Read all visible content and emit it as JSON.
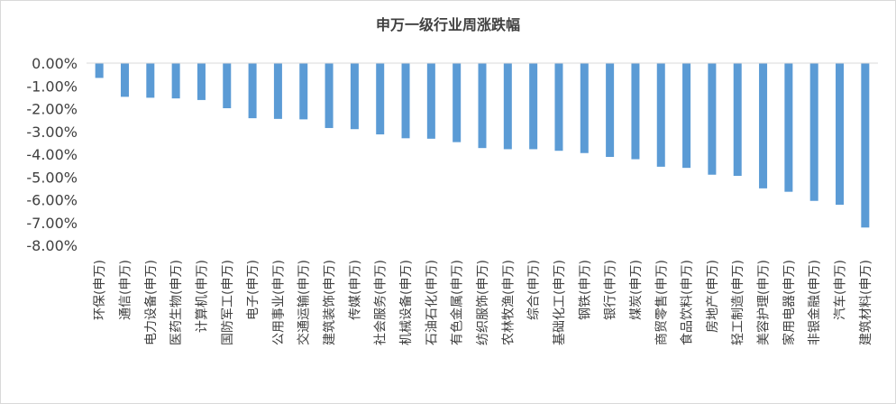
{
  "chart_data": {
    "type": "bar",
    "title": "申万一级行业周涨跌幅",
    "xlabel": "",
    "ylabel": "",
    "ylim": [
      -8.0,
      0.0
    ],
    "yticks": [
      "0.00%",
      "-1.00%",
      "-2.00%",
      "-3.00%",
      "-4.00%",
      "-5.00%",
      "-6.00%",
      "-7.00%",
      "-8.00%"
    ],
    "grid": false,
    "legend": "none",
    "bar_color": "#5b9bd5",
    "categories": [
      "环保(申万)",
      "通信(申万)",
      "电力设备(申万)",
      "医药生物(申万)",
      "计算机(申万)",
      "国防军工(申万)",
      "电子(申万)",
      "公用事业(申万)",
      "交通运输(申万)",
      "建筑装饰(申万)",
      "传媒(申万)",
      "社会服务(申万)",
      "机械设备(申万)",
      "石油石化(申万)",
      "有色金属(申万)",
      "纺织服饰(申万)",
      "农林牧渔(申万)",
      "综合(申万)",
      "基础化工(申万)",
      "钢铁(申万)",
      "银行(申万)",
      "煤炭(申万)",
      "商贸零售(申万)",
      "食品饮料(申万)",
      "房地产(申万)",
      "轻工制造(申万)",
      "美容护理(申万)",
      "家用电器(申万)",
      "非银金融(申万)",
      "汽车(申万)",
      "建筑材料(申万)"
    ],
    "values": [
      -0.65,
      -1.48,
      -1.52,
      -1.55,
      -1.62,
      -1.98,
      -2.42,
      -2.45,
      -2.47,
      -2.85,
      -2.9,
      -3.13,
      -3.3,
      -3.32,
      -3.47,
      -3.73,
      -3.78,
      -3.78,
      -3.85,
      -3.95,
      -4.12,
      -4.22,
      -4.55,
      -4.6,
      -4.9,
      -4.95,
      -5.5,
      -5.65,
      -6.05,
      -6.22,
      -7.22
    ]
  }
}
